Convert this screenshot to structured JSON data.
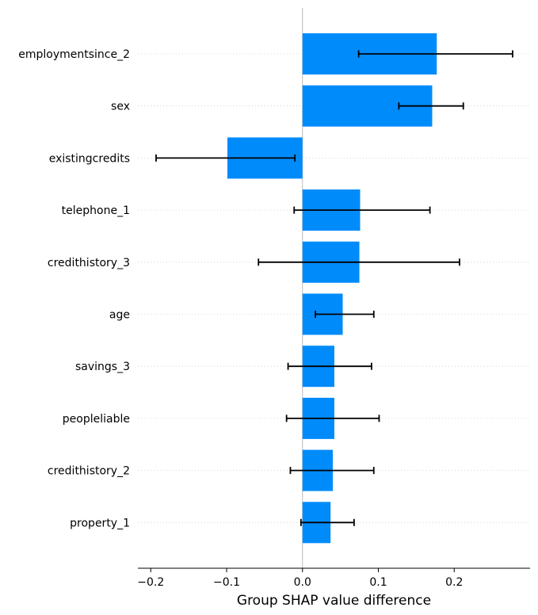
{
  "chart_data": {
    "type": "bar",
    "orientation": "horizontal",
    "title": "",
    "xlabel": "Group SHAP value difference",
    "ylabel": "",
    "xlim": [
      -0.217,
      0.3
    ],
    "xticks": [
      -0.2,
      -0.1,
      0.0,
      0.1,
      0.2
    ],
    "xtick_labels": [
      "−0.2",
      "−0.1",
      "0.0",
      "0.1",
      "0.2"
    ],
    "grid": "dotted horizontal lines per category",
    "bar_color": "#008bfb",
    "errorbar_color": "#000000",
    "categories": [
      "employmentsince_2",
      "sex",
      "existingcredits",
      "telephone_1",
      "credithistory_3",
      "age",
      "savings_3",
      "peopleliable",
      "credithistory_2",
      "property_1"
    ],
    "values": [
      0.177,
      0.171,
      -0.099,
      0.076,
      0.075,
      0.053,
      0.042,
      0.042,
      0.04,
      0.037
    ],
    "error_low": [
      0.074,
      0.127,
      -0.193,
      -0.011,
      -0.058,
      0.017,
      -0.019,
      -0.021,
      -0.016,
      -0.002
    ],
    "error_high": [
      0.277,
      0.212,
      -0.01,
      0.168,
      0.207,
      0.094,
      0.091,
      0.101,
      0.094,
      0.068
    ]
  }
}
